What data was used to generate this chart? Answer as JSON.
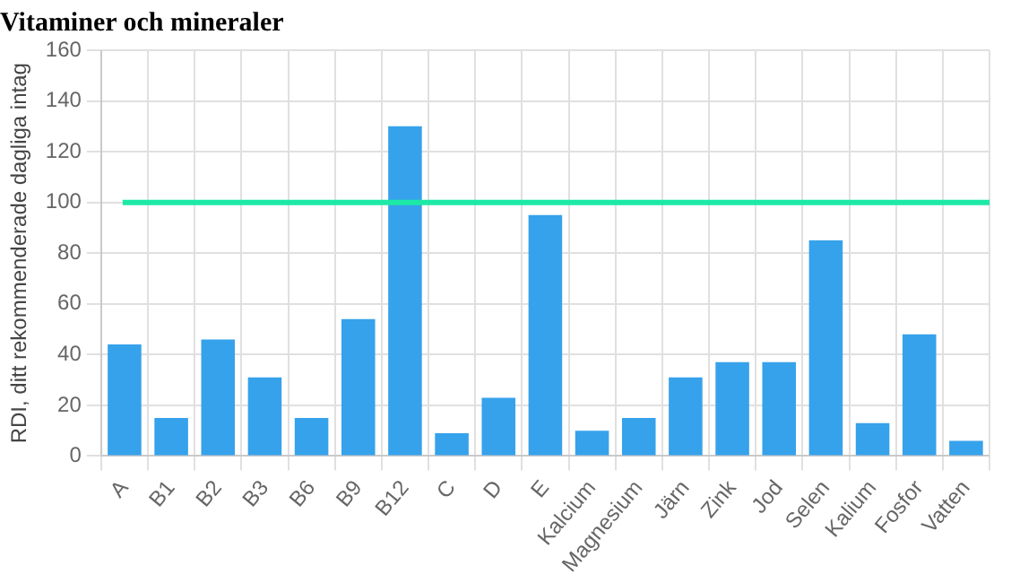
{
  "chart_data": {
    "type": "bar",
    "title": "Vitaminer och mineraler",
    "ylabel": "RDI, ditt rekommenderade dagliga intag",
    "categories": [
      "A",
      "B1",
      "B2",
      "B3",
      "B6",
      "B9",
      "B12",
      "C",
      "D",
      "E",
      "Kalcium",
      "Magnesium",
      "Järn",
      "Zink",
      "Jod",
      "Selen",
      "Kalium",
      "Fosfor",
      "Vatten"
    ],
    "values": [
      44,
      15,
      46,
      31,
      15,
      54,
      130,
      9,
      23,
      95,
      10,
      15,
      31,
      37,
      37,
      85,
      13,
      48,
      6
    ],
    "color": "#36a2eb",
    "ylim": [
      0,
      160
    ],
    "yticks": [
      0,
      20,
      40,
      60,
      80,
      100,
      120,
      140,
      160
    ],
    "grid": true,
    "ref_lines": [
      {
        "axis": "y",
        "value": 100,
        "color": "#1de9a6"
      }
    ]
  }
}
